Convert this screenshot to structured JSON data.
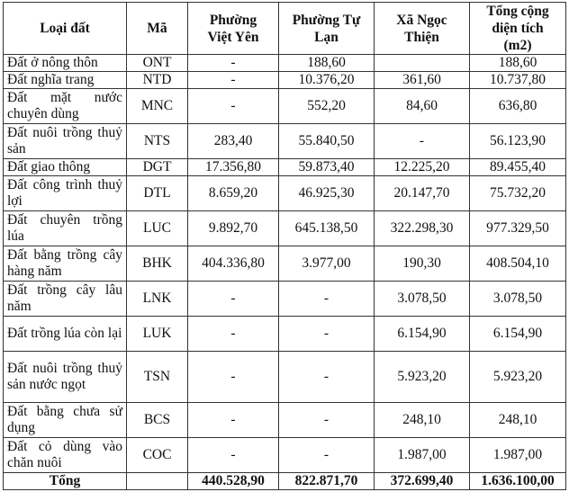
{
  "table": {
    "headers": [
      "Loại đất",
      "Mã",
      "Phường Việt Yên",
      "Phường Tự Lạn",
      "Xã Ngọc Thiện",
      "Tổng cộng diện tích (m2)"
    ],
    "header_lines": {
      "c0": [
        "Loại đất"
      ],
      "c1": [
        "Mã"
      ],
      "c2": [
        "Phường",
        "Việt Yên"
      ],
      "c3": [
        "Phường Tự",
        "Lạn"
      ],
      "c4": [
        "Xã Ngọc",
        "Thiện"
      ],
      "c5": [
        "Tổng cộng",
        "diện tích",
        "(m2)"
      ]
    },
    "rows": [
      {
        "name": "Đất ở nông thôn",
        "code": "ONT",
        "viet_yen": "-",
        "tu_lan": "188,60",
        "ngoc_thien": "",
        "total": "188,60"
      },
      {
        "name": "Đất nghĩa trang",
        "code": "NTD",
        "viet_yen": "-",
        "tu_lan": "10.376,20",
        "ngoc_thien": "361,60",
        "total": "10.737,80"
      },
      {
        "name": "Đất mặt nước chuyên dùng",
        "code": "MNC",
        "viet_yen": "-",
        "tu_lan": "552,20",
        "ngoc_thien": "84,60",
        "total": "636,80"
      },
      {
        "name": "Đất nuôi trồng thuỷ sản",
        "code": "NTS",
        "viet_yen": "283,40",
        "tu_lan": "55.840,50",
        "ngoc_thien": "-",
        "total": "56.123,90"
      },
      {
        "name": "Đất giao thông",
        "code": "DGT",
        "viet_yen": "17.356,80",
        "tu_lan": "59.873,40",
        "ngoc_thien": "12.225,20",
        "total": "89.455,40"
      },
      {
        "name": "Đất công trình thuỷ lợi",
        "code": "DTL",
        "viet_yen": "8.659,20",
        "tu_lan": "46.925,30",
        "ngoc_thien": "20.147,70",
        "total": "75.732,20"
      },
      {
        "name": "Đất chuyên trồng lúa",
        "code": "LUC",
        "viet_yen": "9.892,70",
        "tu_lan": "645.138,50",
        "ngoc_thien": "322.298,30",
        "total": "977.329,50"
      },
      {
        "name": "Đất bằng trồng cây hàng năm",
        "code": "BHK",
        "viet_yen": "404.336,80",
        "tu_lan": "3.977,00",
        "ngoc_thien": "190,30",
        "total": "408.504,10"
      },
      {
        "name": "Đất trồng cây lâu năm",
        "code": "LNK",
        "viet_yen": "-",
        "tu_lan": "-",
        "ngoc_thien": "3.078,50",
        "total": "3.078,50"
      },
      {
        "name": "Đất trồng lúa còn lại",
        "code": "LUK",
        "viet_yen": "-",
        "tu_lan": "-",
        "ngoc_thien": "6.154,90",
        "total": "6.154,90"
      },
      {
        "name": "Đất nuôi trồng thuỷ sản nước ngọt",
        "code": "TSN",
        "viet_yen": "-",
        "tu_lan": "-",
        "ngoc_thien": "5.923,20",
        "total": "5.923,20"
      },
      {
        "name": "Đất bằng chưa sử dụng",
        "code": "BCS",
        "viet_yen": "-",
        "tu_lan": "-",
        "ngoc_thien": "248,10",
        "total": "248,10"
      },
      {
        "name": "Đất cỏ dùng vào chăn nuôi",
        "code": "COC",
        "viet_yen": "-",
        "tu_lan": "-",
        "ngoc_thien": "1.987,00",
        "total": "1.987,00"
      }
    ],
    "total_row": {
      "label": "Tổng",
      "code": "",
      "viet_yen": "440.528,90",
      "tu_lan": "822.871,70",
      "ngoc_thien": "372.699,40",
      "total": "1.636.100,00"
    }
  }
}
